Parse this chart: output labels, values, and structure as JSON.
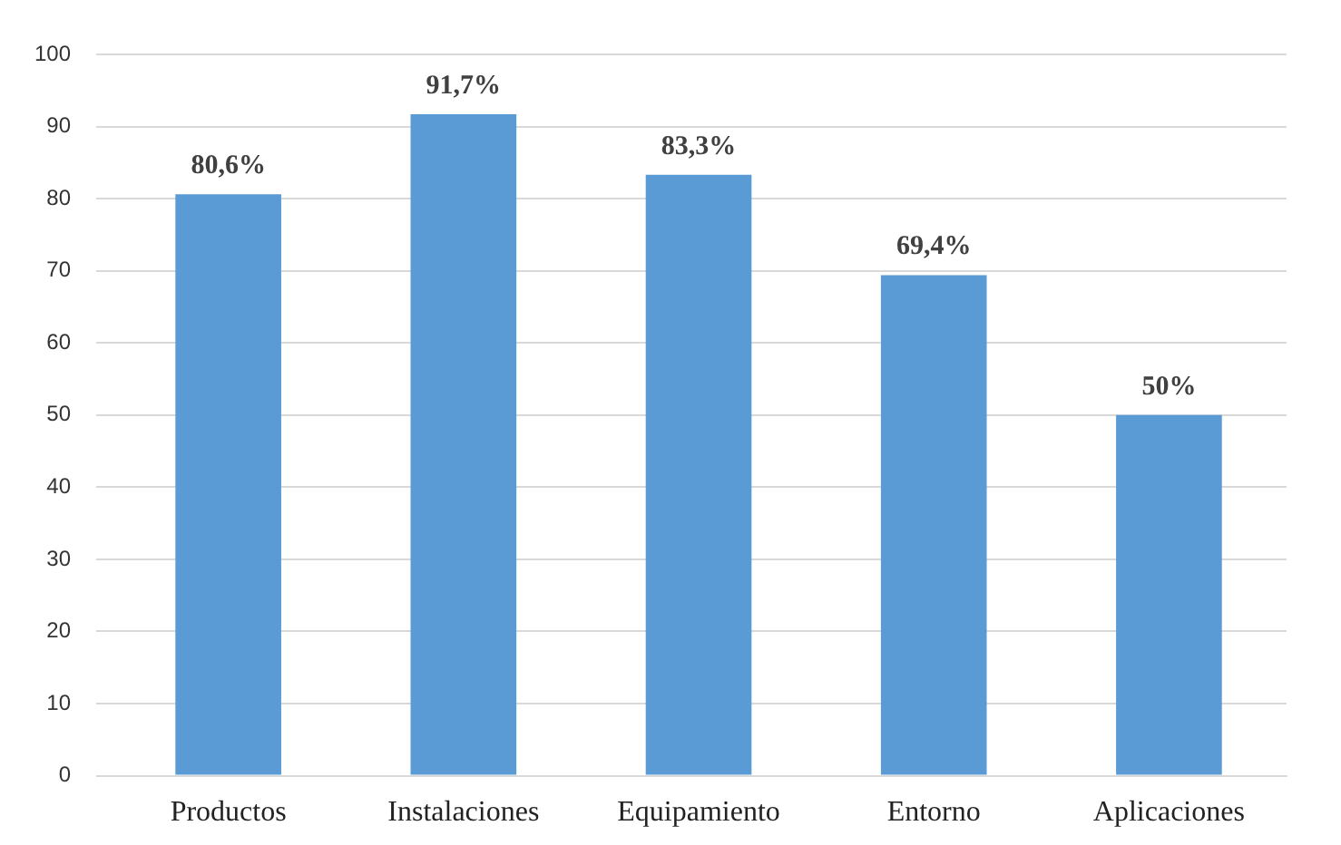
{
  "chart_data": {
    "type": "bar",
    "categories": [
      "Productos",
      "Instalaciones",
      "Equipamiento",
      "Entorno",
      "Aplicaciones"
    ],
    "values": [
      80.6,
      91.7,
      83.3,
      69.4,
      50
    ],
    "value_labels": [
      "80,6%",
      "91,7%",
      "83,3%",
      "69,4%",
      "50%"
    ],
    "color": "#5b9bd5",
    "ylim": [
      0,
      100
    ],
    "yticks": [
      0,
      10,
      20,
      30,
      40,
      50,
      60,
      70,
      80,
      90,
      100
    ],
    "grid": "y"
  }
}
